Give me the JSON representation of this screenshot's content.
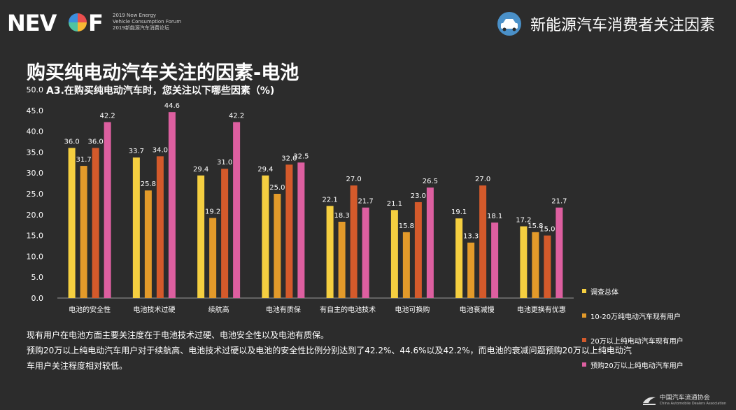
{
  "header": {
    "logo_text": "NEV",
    "logo_suffix": "F",
    "logo_sub_en1": "2019 New Energy",
    "logo_sub_en2": "Vehicle Consumption Forum",
    "logo_sub_cn": "2019新能源汽车消费论坛",
    "title": "新能源汽车消费者关注因素"
  },
  "main_title": "购买纯电动汽车关注的因素-电池",
  "notes": [
    "现有用户在电池方面主要关注度在于电池技术过硬、电池安全性以及电池有质保。",
    "预购20万以上纯电动汽车用户对于续航高、电池技术过硬以及电池的安全性比例分别达到了42.2%、44.6%以及42.2%，而电池的衰减问题预购20万以上纯电动汽",
    "车用户关注程度相对较低。"
  ],
  "footer": {
    "org": "中国汽车流通协会",
    "org_en": "China Automobile Dealers Association"
  },
  "colors": {
    "s1": "#f5cf40",
    "s2": "#e39a2a",
    "s3": "#d45a2b",
    "s4": "#dd5fa0"
  },
  "chart_data": {
    "type": "bar",
    "title": "A3.在购买纯电动汽车时，您关注以下哪些因素（%)",
    "ylim": [
      0,
      50
    ],
    "yticks": [
      "0.0",
      "5.0",
      "10.0",
      "15.0",
      "20.0",
      "25.0",
      "30.0",
      "35.0",
      "40.0",
      "45.0",
      "50.0"
    ],
    "categories": [
      "电池的安全性",
      "电池技术过硬",
      "续航高",
      "电池有质保",
      "有自主的电池技术",
      "电池可换购",
      "电池衰减慢",
      "电池更换有优惠"
    ],
    "series": [
      {
        "name": "调查总体",
        "values": [
          36.0,
          33.7,
          29.4,
          29.4,
          22.1,
          21.1,
          19.1,
          17.2
        ]
      },
      {
        "name": "10-20万纯电动汽车现有用户",
        "values": [
          31.7,
          25.8,
          19.2,
          25.0,
          18.3,
          15.8,
          13.3,
          15.8
        ]
      },
      {
        "name": "20万以上纯电动汽车现有用户",
        "values": [
          36.0,
          34.0,
          31.0,
          32.0,
          27.0,
          23.0,
          27.0,
          15.0
        ]
      },
      {
        "name": "预购20万以上纯电动汽车用户",
        "values": [
          42.2,
          44.6,
          42.2,
          32.5,
          21.7,
          26.5,
          18.1,
          21.7
        ]
      }
    ],
    "legend_position": "right",
    "grid": false
  }
}
